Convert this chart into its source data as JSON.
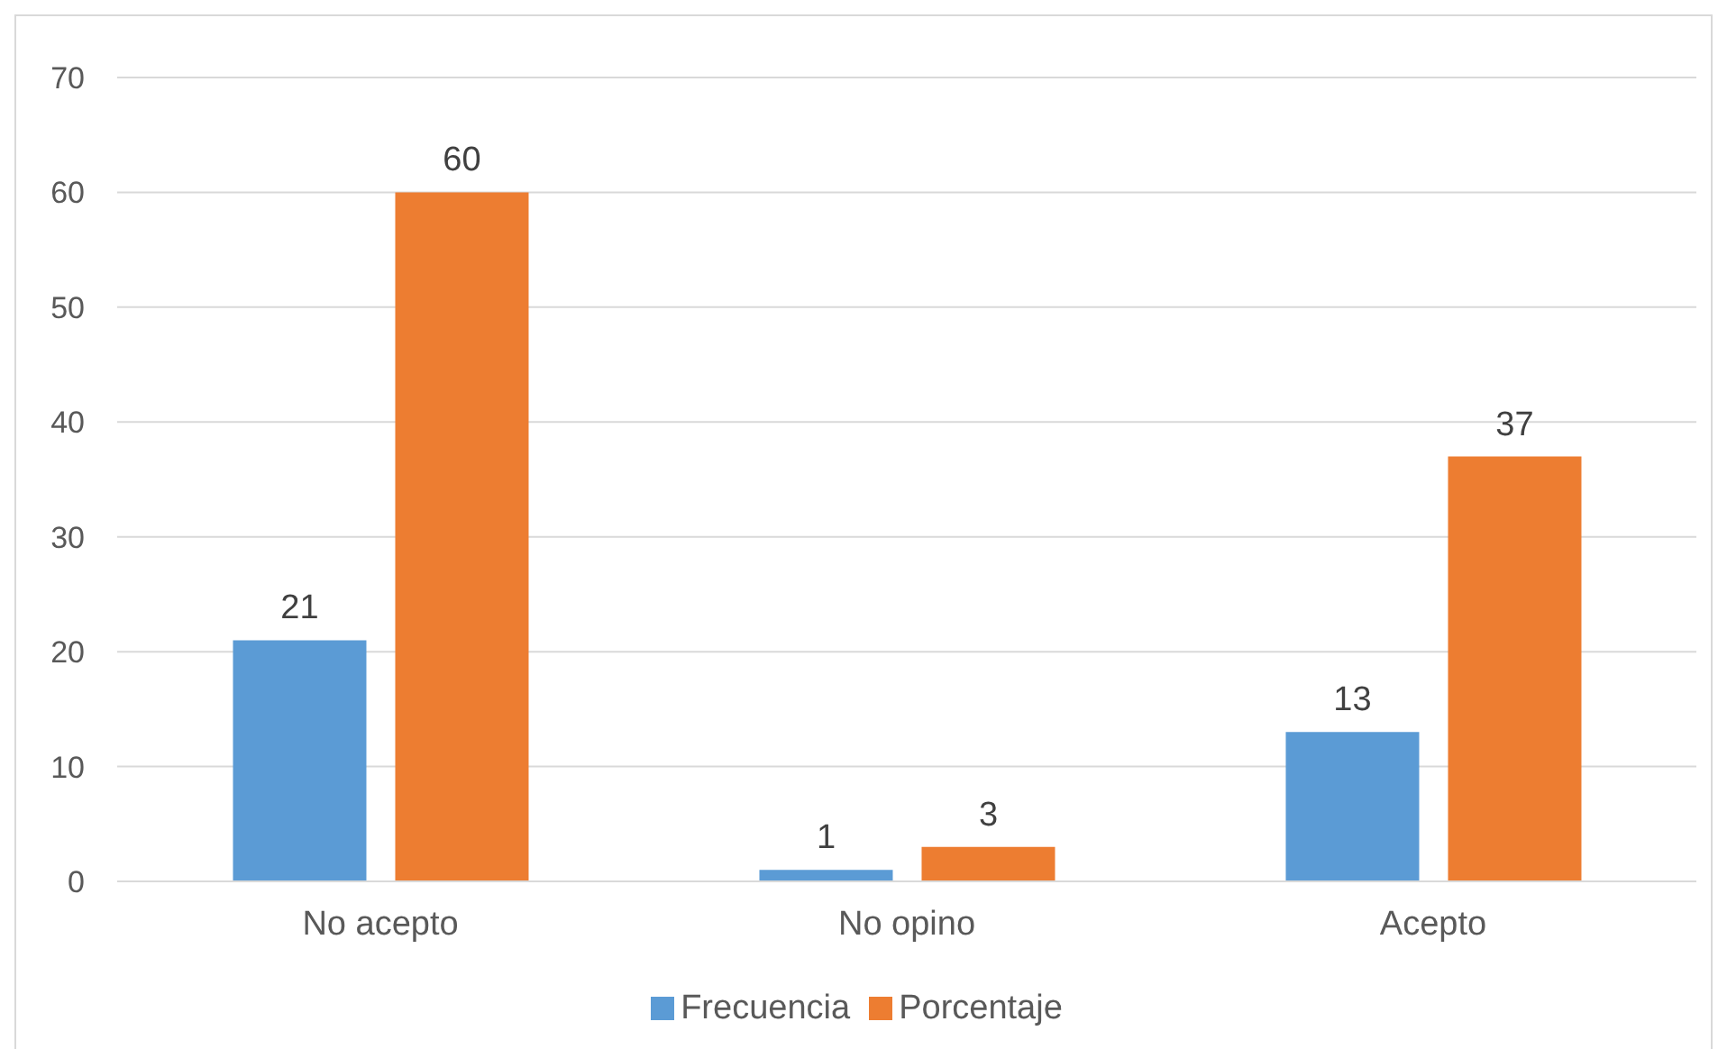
{
  "chart_data": {
    "type": "bar",
    "categories": [
      "No acepto",
      "No opino",
      "Acepto"
    ],
    "series": [
      {
        "name": "Frecuencia",
        "color": "#5b9bd5",
        "values": [
          21,
          1,
          13
        ]
      },
      {
        "name": "Porcentaje",
        "color": "#ed7d31",
        "values": [
          60,
          3,
          37
        ]
      }
    ],
    "ylim": [
      0,
      70
    ],
    "yticks": [
      0,
      10,
      20,
      30,
      40,
      50,
      60,
      70
    ],
    "grid": "y",
    "legend": "bottom",
    "data_labels": true
  }
}
